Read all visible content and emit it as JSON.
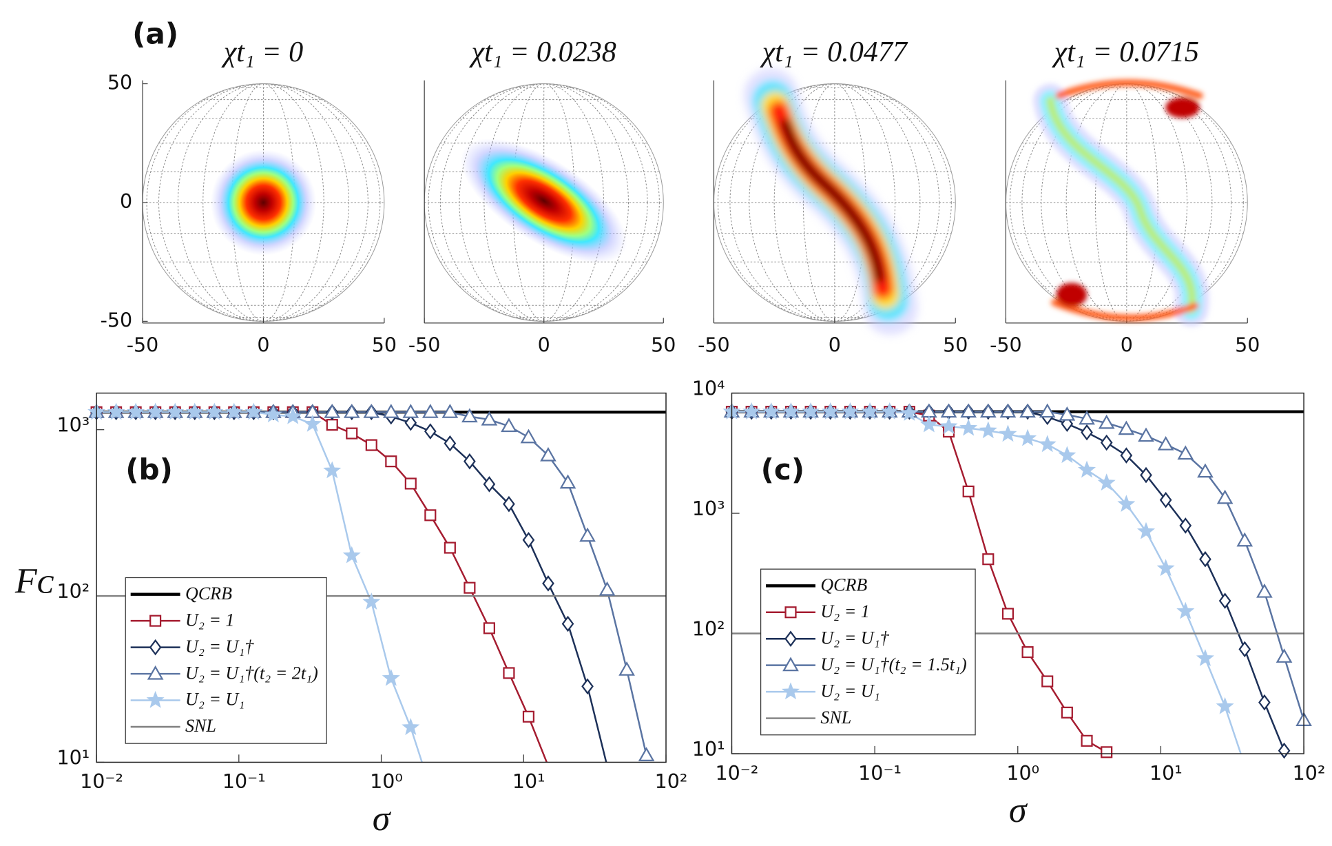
{
  "chart_data": [
    {
      "type": "sphere",
      "label": "(a)",
      "title": "χt₁ = 0",
      "xlim": [
        -50,
        50
      ],
      "ylim": [
        -50,
        50
      ],
      "xticks": [
        -50,
        0,
        50
      ],
      "yticks": [
        -50,
        0,
        50
      ]
    },
    {
      "type": "sphere",
      "title": "χt₁ = 0.0238",
      "xlim": [
        -50,
        50
      ],
      "ylim": [
        -50,
        50
      ],
      "xticks": [
        -50,
        0,
        50
      ]
    },
    {
      "type": "sphere",
      "title": "χt₁ = 0.0477",
      "xlim": [
        -50,
        50
      ],
      "ylim": [
        -50,
        50
      ],
      "xticks": [
        -50,
        0,
        50
      ]
    },
    {
      "type": "sphere",
      "title": "χt₁ = 0.0715",
      "xlim": [
        -50,
        50
      ],
      "ylim": [
        -50,
        50
      ],
      "xticks": [
        -50,
        0,
        50
      ]
    },
    {
      "type": "line",
      "label": "(b)",
      "xlabel": "σ",
      "ylabel": "Fᴄ",
      "xscale": "log",
      "yscale": "log",
      "legend": "lower left",
      "xlim": [
        0.01,
        100
      ],
      "ylim": [
        10,
        1660
      ],
      "xticks": [
        {
          "value": 0.01,
          "label": "10⁻²"
        },
        {
          "value": 0.1,
          "label": "10⁻¹"
        },
        {
          "value": 1,
          "label": "10⁰"
        },
        {
          "value": 10,
          "label": "10¹"
        },
        {
          "value": 100,
          "label": "10²"
        }
      ],
      "yticks": [
        {
          "value": 10,
          "label": "10¹"
        },
        {
          "value": 100,
          "label": "10²"
        },
        {
          "value": 1000,
          "label": "10³"
        }
      ],
      "x": [
        0.01,
        0.01374,
        0.01888,
        0.02594,
        0.03565,
        0.04898,
        0.0673,
        0.09247,
        0.1271,
        0.1746,
        0.2395,
        0.329,
        0.452,
        0.621,
        0.8532,
        1.172,
        1.61,
        2.212,
        3.04,
        4.177,
        5.739,
        7.885,
        10.83,
        14.88,
        20.45,
        28.1,
        38.61,
        53.04,
        72.88,
        100
      ],
      "series": [
        {
          "name": "QCRB",
          "color": "#000000",
          "x": [
            0.01,
            100
          ],
          "values": [
            1275,
            1275
          ]
        },
        {
          "name": "U₂ = 1",
          "color": "#a51c30",
          "marker": "square",
          "values": [
            1275,
            1275,
            1275,
            1275,
            1275,
            1275,
            1275,
            1275,
            1275,
            1275,
            1275,
            1275,
            1070,
            950,
            808,
            645,
            474,
            306,
            195,
            112,
            64,
            34.4,
            18.8,
            9.5,
            null,
            null,
            null,
            null,
            null,
            null
          ]
        },
        {
          "name": "U₂ = U₁†",
          "color": "#1c3058",
          "marker": "diamond",
          "values": [
            1275,
            1275,
            1275,
            1275,
            1275,
            1275,
            1275,
            1275,
            1275,
            1275,
            1275,
            1275,
            1275,
            1275,
            1275,
            1200,
            1100,
            977,
            827,
            645,
            470,
            357,
            217,
            119,
            68,
            28.6,
            9.5,
            null,
            null,
            null
          ]
        },
        {
          "name": "U₂ = U₁†(t₂ = 2t₁)",
          "color": "#5a74a2",
          "marker": "triangle",
          "values": [
            1275,
            1275,
            1275,
            1275,
            1275,
            1275,
            1275,
            1275,
            1275,
            1275,
            1275,
            1275,
            1275,
            1275,
            1275,
            1275,
            1275,
            1275,
            1275,
            1200,
            1150,
            1050,
            900,
            700,
            480,
            230,
            109,
            36,
            11,
            null
          ]
        },
        {
          "name": "U₂ = U₁",
          "color": "#a9c9ec",
          "marker": "star",
          "values": [
            1275,
            1275,
            1275,
            1275,
            1275,
            1275,
            1275,
            1275,
            1275,
            1230,
            1200,
            1080,
            567,
            175,
            92,
            32,
            16.2,
            7,
            null,
            null,
            null,
            null,
            null,
            null,
            null,
            null,
            null,
            null,
            null,
            null
          ]
        },
        {
          "name": "SNL",
          "color": "#808080",
          "x": [
            0.01,
            100
          ],
          "values": [
            100,
            100
          ]
        }
      ]
    },
    {
      "type": "line",
      "label": "(c)",
      "xlabel": "σ",
      "xscale": "log",
      "yscale": "log",
      "legend": "lower left",
      "xlim": [
        0.01,
        100
      ],
      "ylim": [
        10,
        10000
      ],
      "xticks": [
        {
          "value": 0.01,
          "label": "10⁻²"
        },
        {
          "value": 0.1,
          "label": "10⁻¹"
        },
        {
          "value": 1,
          "label": "10⁰"
        },
        {
          "value": 10,
          "label": "10¹"
        },
        {
          "value": 100,
          "label": "10²"
        }
      ],
      "yticks": [
        {
          "value": 10,
          "label": "10¹"
        },
        {
          "value": 100,
          "label": "10²"
        },
        {
          "value": 1000,
          "label": "10³"
        },
        {
          "value": 10000,
          "label": "10⁴"
        }
      ],
      "x": [
        0.01,
        0.01374,
        0.01888,
        0.02594,
        0.03565,
        0.04898,
        0.0673,
        0.09247,
        0.1271,
        0.1746,
        0.2395,
        0.329,
        0.452,
        0.621,
        0.8532,
        1.172,
        1.61,
        2.212,
        3.04,
        4.177,
        5.739,
        7.885,
        10.83,
        14.88,
        20.45,
        28.1,
        38.61,
        53.04,
        72.88,
        100
      ],
      "series": [
        {
          "name": "QCRB",
          "color": "#000000",
          "x": [
            0.01,
            100
          ],
          "values": [
            7000,
            7000
          ]
        },
        {
          "name": "U₂ = 1",
          "color": "#a51c30",
          "marker": "square",
          "values": [
            7000,
            7000,
            7000,
            7000,
            7000,
            7000,
            7000,
            7000,
            7000,
            7000,
            6500,
            4780,
            1520,
            415,
            146,
            70,
            40,
            22,
            12.8,
            10.3,
            6,
            null,
            null,
            null,
            null,
            null,
            null,
            null,
            null,
            null
          ]
        },
        {
          "name": "U₂ = U₁†",
          "color": "#1c3058",
          "marker": "diamond",
          "values": [
            7000,
            7000,
            7000,
            7000,
            7000,
            7000,
            7000,
            7000,
            7000,
            7000,
            7000,
            7000,
            7000,
            7000,
            7000,
            7000,
            6330,
            5550,
            4710,
            3870,
            3030,
            2080,
            1290,
            790,
            415,
            187,
            74,
            26.7,
            10.6,
            null
          ]
        },
        {
          "name": "U₂ = U₁†(t₂ = 1.5t₁)",
          "color": "#5a74a2",
          "marker": "triangle",
          "values": [
            7000,
            7000,
            7000,
            7000,
            7000,
            7000,
            7000,
            7000,
            7000,
            7000,
            7000,
            7000,
            7000,
            7000,
            7000,
            7000,
            7000,
            6600,
            6120,
            5640,
            5030,
            4410,
            3740,
            3130,
            2220,
            1340,
            592,
            222,
            64,
            19
          ]
        },
        {
          "name": "U₂ = U₁",
          "color": "#a9c9ec",
          "marker": "star",
          "values": [
            7000,
            7000,
            7000,
            7000,
            7000,
            7000,
            7000,
            7000,
            7000,
            6800,
            5460,
            5280,
            5110,
            4870,
            4560,
            4200,
            3740,
            3030,
            2290,
            1790,
            1190,
            706,
            348,
            153,
            62,
            24.7,
            8,
            null,
            null,
            null
          ]
        },
        {
          "name": "SNL",
          "color": "#808080",
          "x": [
            0.01,
            100
          ],
          "values": [
            100,
            100
          ]
        }
      ]
    }
  ]
}
